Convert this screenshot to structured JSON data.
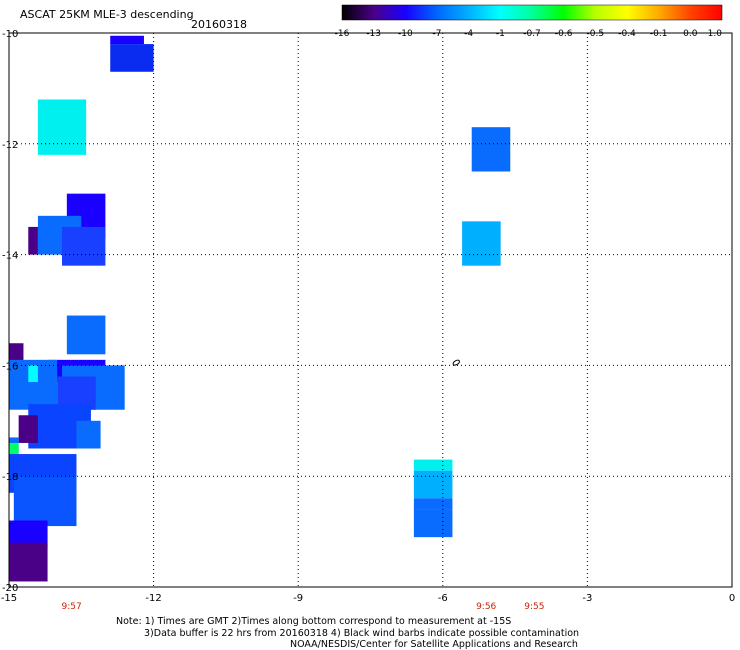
{
  "header": {
    "title": "ASCAT 25KM MLE-3 descending",
    "date": "20160318"
  },
  "colorbar": {
    "labels": [
      "-16",
      "-13",
      "-10",
      "-7",
      "-4",
      "-1",
      "-0.7",
      "-0.6",
      "-0.5",
      "-0.4",
      "-0.1",
      "0.0",
      "1.0"
    ],
    "colors": [
      "#000000",
      "#4b0088",
      "#1a00ff",
      "#0066ff",
      "#00b0ff",
      "#00ffff",
      "#00ff99",
      "#00ff00",
      "#b8ff00",
      "#ffff00",
      "#ffaa00",
      "#ff4400",
      "#ff0000"
    ]
  },
  "axes": {
    "x_ticks": [
      "-15",
      "-12",
      "-9",
      "-6",
      "-3",
      "0"
    ],
    "y_ticks": [
      "-10",
      "-12",
      "-14",
      "-16",
      "-18",
      "-20"
    ],
    "xlim": [
      -15,
      0
    ],
    "ylim": [
      -20,
      -10
    ]
  },
  "time_labels": [
    {
      "text": "9:57",
      "lon": -13.7
    },
    {
      "text": "9:56",
      "lon": -5.1
    },
    {
      "text": "9:55",
      "lon": -4.1
    }
  ],
  "cells": [
    {
      "lon": [
        -12.9,
        -12.2
      ],
      "lat": [
        -10.2,
        -10.05
      ],
      "color": "#1a00ff"
    },
    {
      "lon": [
        -12.9,
        -12.0
      ],
      "lat": [
        -10.7,
        -10.2
      ],
      "color": "#0a2cf0"
    },
    {
      "lon": [
        -14.4,
        -13.4
      ],
      "lat": [
        -12.2,
        -11.2
      ],
      "color": "#00f0f0"
    },
    {
      "lon": [
        -5.4,
        -4.6
      ],
      "lat": [
        -12.5,
        -11.7
      ],
      "color": "#0a6cff"
    },
    {
      "lon": [
        -13.8,
        -13.0
      ],
      "lat": [
        -13.7,
        -12.9
      ],
      "color": "#1a00ff"
    },
    {
      "lon": [
        -14.4,
        -13.5
      ],
      "lat": [
        -14.0,
        -13.3
      ],
      "color": "#0a6cff"
    },
    {
      "lon": [
        -13.9,
        -13.0
      ],
      "lat": [
        -14.2,
        -13.5
      ],
      "color": "#1a40ff"
    },
    {
      "lon": [
        -14.6,
        -14.4
      ],
      "lat": [
        -14.0,
        -13.5
      ],
      "color": "#4b0088"
    },
    {
      "lon": [
        -5.6,
        -4.8
      ],
      "lat": [
        -14.2,
        -13.4
      ],
      "color": "#00b0ff"
    },
    {
      "lon": [
        -13.8,
        -13.0
      ],
      "lat": [
        -15.8,
        -15.1
      ],
      "color": "#0a6cff"
    },
    {
      "lon": [
        -15.0,
        -14.7
      ],
      "lat": [
        -16.0,
        -15.6
      ],
      "color": "#4b0088"
    },
    {
      "lon": [
        -14.2,
        -13.0
      ],
      "lat": [
        -16.3,
        -15.9
      ],
      "color": "#1a00ff"
    },
    {
      "lon": [
        -13.9,
        -12.6
      ],
      "lat": [
        -16.8,
        -16.0
      ],
      "color": "#0a6cff"
    },
    {
      "lon": [
        -15.0,
        -14.0
      ],
      "lat": [
        -16.8,
        -15.9
      ],
      "color": "#0a6cff"
    },
    {
      "lon": [
        -14.6,
        -14.4
      ],
      "lat": [
        -16.3,
        -16.0
      ],
      "color": "#00ffff"
    },
    {
      "lon": [
        -14.0,
        -13.2
      ],
      "lat": [
        -16.8,
        -16.2
      ],
      "color": "#1a40ff"
    },
    {
      "lon": [
        -14.6,
        -13.3
      ],
      "lat": [
        -17.5,
        -16.7
      ],
      "color": "#0a44ff"
    },
    {
      "lon": [
        -13.6,
        -13.1
      ],
      "lat": [
        -17.5,
        -17.0
      ],
      "color": "#0a6cff"
    },
    {
      "lon": [
        -14.8,
        -14.4
      ],
      "lat": [
        -17.4,
        -16.9
      ],
      "color": "#4b0088"
    },
    {
      "lon": [
        -15.0,
        -14.8
      ],
      "lat": [
        -17.8,
        -17.3
      ],
      "color": "#0a6cff"
    },
    {
      "lon": [
        -15.0,
        -14.8
      ],
      "lat": [
        -17.6,
        -17.4
      ],
      "color": "#00ff66"
    },
    {
      "lon": [
        -15.0,
        -13.6
      ],
      "lat": [
        -18.3,
        -17.6
      ],
      "color": "#0a44ff"
    },
    {
      "lon": [
        -14.9,
        -13.6
      ],
      "lat": [
        -18.9,
        -18.0
      ],
      "color": "#0a55ff"
    },
    {
      "lon": [
        -15.0,
        -14.2
      ],
      "lat": [
        -19.3,
        -18.8
      ],
      "color": "#1a00ff"
    },
    {
      "lon": [
        -15.0,
        -14.2
      ],
      "lat": [
        -19.9,
        -19.2
      ],
      "color": "#4b0088"
    },
    {
      "lon": [
        -6.6,
        -5.8
      ],
      "lat": [
        -17.9,
        -17.7
      ],
      "color": "#00f0f0"
    },
    {
      "lon": [
        -6.6,
        -5.8
      ],
      "lat": [
        -18.4,
        -17.9
      ],
      "color": "#00b0ff"
    },
    {
      "lon": [
        -6.6,
        -5.8
      ],
      "lat": [
        -18.6,
        -18.4
      ],
      "color": "#0a6cff"
    },
    {
      "lon": [
        -6.6,
        -5.8
      ],
      "lat": [
        -19.1,
        -18.6
      ],
      "color": "#0a6cff"
    }
  ],
  "notes": [
    "Note: 1) Times are GMT 2)Times along bottom correspond to measurement at -15S",
    "3)Data buffer is 22 hrs from 20160318 4) Black wind barbs indicate possible contamination",
    "NOAA/NESDIS/Center for Satellite Applications and Research"
  ]
}
